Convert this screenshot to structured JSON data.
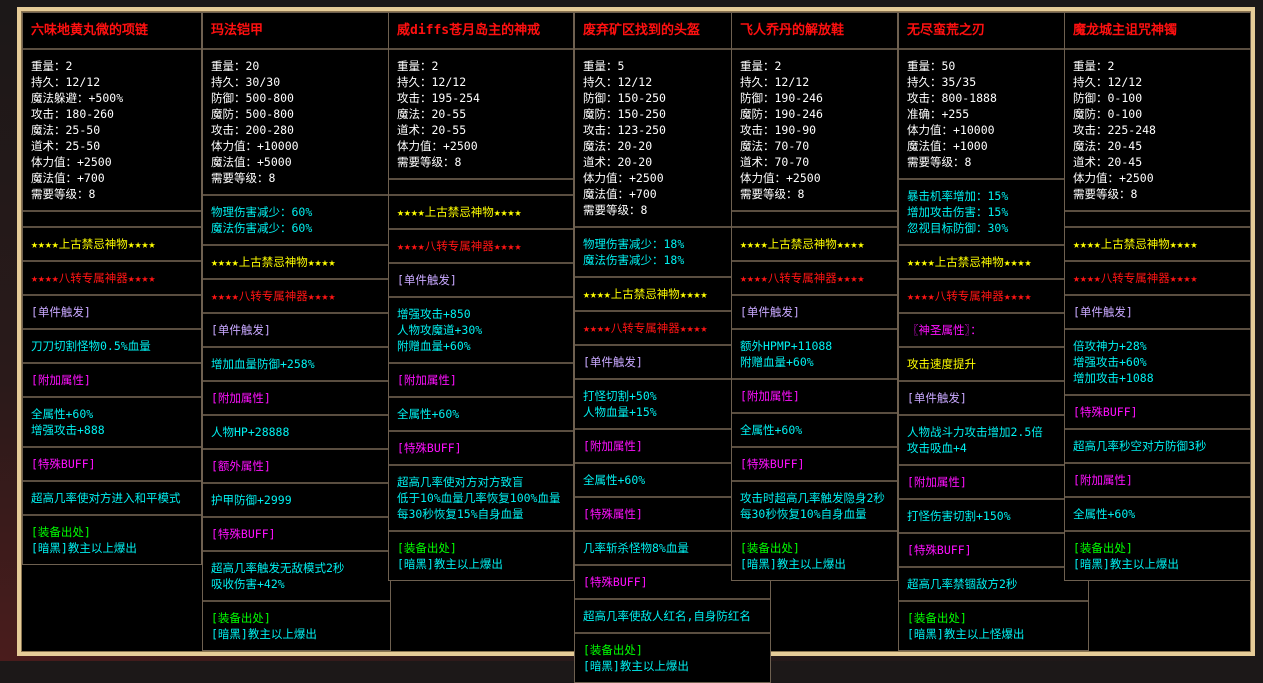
{
  "colors": {
    "title": "#ff1010",
    "stats": "#ffffff",
    "attr": "#00f0f0",
    "yellow": "#ffff00",
    "red": "#ff1414",
    "trigger": "#c8a8ff",
    "header": "#ff10ff",
    "source": "#00ff00",
    "frame": "#e6cc98"
  },
  "cards": [
    {
      "title": "六味地黄丸微的项链",
      "stats": [
        "重量：2",
        "持久：12/12",
        "魔法躲避：+500%",
        "攻击：180-260",
        "魔法：25-50",
        "道术：25-50",
        "体力值：+2500",
        "魔法值：+700",
        "需要等级：8"
      ],
      "sections": [
        {
          "type": "empty",
          "lines": []
        },
        {
          "type": "yellow",
          "lines": [
            "★★★★上古禁忌神物★★★★"
          ]
        },
        {
          "type": "red",
          "lines": [
            "★★★★八转专属神器★★★★"
          ]
        },
        {
          "type": "lav",
          "lines": [
            "[单件触发]"
          ]
        },
        {
          "type": "cyan",
          "lines": [
            "刀刀切割怪物0.5%血量"
          ]
        },
        {
          "type": "mag",
          "lines": [
            "[附加属性]"
          ]
        },
        {
          "type": "cyan",
          "lines": [
            "全属性+60%",
            "增强攻击+888"
          ]
        },
        {
          "type": "mag",
          "lines": [
            "[特殊BUFF]"
          ]
        },
        {
          "type": "cyan",
          "lines": [
            "超高几率使对方进入和平模式"
          ]
        },
        {
          "type": "source",
          "lines": [
            "[装备出处]",
            "[暗黑]教主以上爆出"
          ]
        }
      ]
    },
    {
      "title": "玛法铠甲",
      "stats": [
        "重量：20",
        "持久：30/30",
        "防御：500-800",
        "魔防：500-800",
        "攻击：200-280",
        "体力值：+10000",
        "魔法值：+5000",
        "需要等级：8"
      ],
      "sections": [
        {
          "type": "cyan",
          "lines": [
            "物理伤害减少：60%",
            "魔法伤害减少：60%"
          ]
        },
        {
          "type": "yellow",
          "lines": [
            "★★★★上古禁忌神物★★★★"
          ]
        },
        {
          "type": "red",
          "lines": [
            "★★★★八转专属神器★★★★"
          ]
        },
        {
          "type": "lav",
          "lines": [
            "[单件触发]"
          ]
        },
        {
          "type": "cyan",
          "lines": [
            "增加血量防御+258%"
          ]
        },
        {
          "type": "mag",
          "lines": [
            "[附加属性]"
          ]
        },
        {
          "type": "cyan",
          "lines": [
            "人物HP+28888"
          ]
        },
        {
          "type": "mag",
          "lines": [
            "[额外属性]"
          ]
        },
        {
          "type": "cyan",
          "lines": [
            "护甲防御+2999"
          ]
        },
        {
          "type": "mag",
          "lines": [
            "[特殊BUFF]"
          ]
        },
        {
          "type": "cyan",
          "lines": [
            "超高几率触发无敌模式2秒",
            "吸收伤害+42%"
          ]
        },
        {
          "type": "source",
          "lines": [
            "[装备出处]",
            "[暗黑]教主以上爆出"
          ]
        }
      ]
    },
    {
      "title": "威diffs苍月岛主的神戒",
      "stats": [
        "重量：2",
        "持久：12/12",
        "攻击：195-254",
        "魔法：20-55",
        "道术：20-55",
        "体力值：+2500",
        "需要等级：8"
      ],
      "sections": [
        {
          "type": "empty",
          "lines": []
        },
        {
          "type": "yellow",
          "lines": [
            "★★★★上古禁忌神物★★★★"
          ]
        },
        {
          "type": "red",
          "lines": [
            "★★★★八转专属神器★★★★"
          ]
        },
        {
          "type": "lav",
          "lines": [
            "[单件触发]"
          ]
        },
        {
          "type": "cyan",
          "lines": [
            "增强攻击+850",
            "人物攻魔道+30%",
            "附赠血量+60%"
          ]
        },
        {
          "type": "mag",
          "lines": [
            "[附加属性]"
          ]
        },
        {
          "type": "cyan",
          "lines": [
            "全属性+60%"
          ]
        },
        {
          "type": "mag",
          "lines": [
            "[特殊BUFF]"
          ]
        },
        {
          "type": "cyan",
          "lines": [
            "超高几率使对方对方致盲",
            "低于10%血量几率恢复100%血量",
            "每30秒恢复15%自身血量"
          ]
        },
        {
          "type": "source",
          "lines": [
            "[装备出处]",
            "[暗黑]教主以上爆出"
          ]
        }
      ]
    },
    {
      "title": "废弃矿区找到的头盔",
      "stats": [
        "重量：5",
        "持久：12/12",
        "防御：150-250",
        "魔防：150-250",
        "攻击：123-250",
        "魔法：20-20",
        "道术：20-20",
        "体力值：+2500",
        "魔法值：+700",
        "需要等级：8"
      ],
      "sections": [
        {
          "type": "cyan",
          "lines": [
            "物理伤害减少：18%",
            "魔法伤害减少：18%"
          ]
        },
        {
          "type": "yellow",
          "lines": [
            "★★★★上古禁忌神物★★★★"
          ]
        },
        {
          "type": "red",
          "lines": [
            "★★★★八转专属神器★★★★"
          ]
        },
        {
          "type": "lav",
          "lines": [
            "[单件触发]"
          ]
        },
        {
          "type": "cyan",
          "lines": [
            "打怪切割+50%",
            "人物血量+15%"
          ]
        },
        {
          "type": "mag",
          "lines": [
            "[附加属性]"
          ]
        },
        {
          "type": "cyan",
          "lines": [
            "全属性+60%"
          ]
        },
        {
          "type": "mag",
          "lines": [
            "[特殊属性]"
          ]
        },
        {
          "type": "cyan",
          "lines": [
            "几率斩杀怪物8%血量"
          ]
        },
        {
          "type": "mag",
          "lines": [
            "[特殊BUFF]"
          ]
        },
        {
          "type": "cyan",
          "lines": [
            "超高几率使敌人红名,自身防红名"
          ]
        },
        {
          "type": "source",
          "lines": [
            "[装备出处]",
            "[暗黑]教主以上爆出"
          ]
        }
      ]
    },
    {
      "title": "飞人乔丹的解放鞋",
      "stats": [
        "重量：2",
        "持久：12/12",
        "防御：190-246",
        "魔防：190-246",
        "攻击：190-90",
        "魔法：70-70",
        "道术：70-70",
        "体力值：+2500",
        "需要等级：8"
      ],
      "sections": [
        {
          "type": "empty",
          "lines": []
        },
        {
          "type": "yellow",
          "lines": [
            "★★★★上古禁忌神物★★★★"
          ]
        },
        {
          "type": "red",
          "lines": [
            "★★★★八转专属神器★★★★"
          ]
        },
        {
          "type": "lav",
          "lines": [
            "[单件触发]"
          ]
        },
        {
          "type": "cyan",
          "lines": [
            "额外HPMP+11088",
            "附赠血量+60%"
          ]
        },
        {
          "type": "mag",
          "lines": [
            "[附加属性]"
          ]
        },
        {
          "type": "cyan",
          "lines": [
            "全属性+60%"
          ]
        },
        {
          "type": "mag",
          "lines": [
            "[特殊BUFF]"
          ]
        },
        {
          "type": "cyan",
          "lines": [
            "攻击时超高几率触发隐身2秒",
            "每30秒恢复10%自身血量"
          ]
        },
        {
          "type": "source",
          "lines": [
            "[装备出处]",
            "[暗黑]教主以上爆出"
          ]
        }
      ]
    },
    {
      "title": "无尽蛮荒之刃",
      "stats": [
        "重量：50",
        "持久：35/35",
        "攻击：800-1888",
        "准确：+255",
        "体力值：+10000",
        "魔法值：+1000",
        "需要等级：8"
      ],
      "sections": [
        {
          "type": "cyan",
          "lines": [
            "暴击机率增加：15%",
            "增加攻击伤害：15%",
            "忽视目标防御：30%"
          ]
        },
        {
          "type": "yellow",
          "lines": [
            "★★★★上古禁忌神物★★★★"
          ]
        },
        {
          "type": "red",
          "lines": [
            "★★★★八转专属神器★★★★"
          ]
        },
        {
          "type": "mag",
          "lines": [
            "〖神圣属性〗："
          ]
        },
        {
          "type": "yellow",
          "lines": [
            "攻击速度提升"
          ]
        },
        {
          "type": "lav",
          "lines": [
            "[单件触发]"
          ]
        },
        {
          "type": "cyan",
          "lines": [
            "人物战斗力攻击增加2.5倍",
            "攻击吸血+4"
          ]
        },
        {
          "type": "mag",
          "lines": [
            "[附加属性]"
          ]
        },
        {
          "type": "cyan",
          "lines": [
            "打怪伤害切割+150%"
          ]
        },
        {
          "type": "mag",
          "lines": [
            "[特殊BUFF]"
          ]
        },
        {
          "type": "cyan",
          "lines": [
            "超高几率禁锢敌方2秒"
          ]
        },
        {
          "type": "source",
          "lines": [
            "[装备出处]",
            "[暗黑]教主以上怪爆出"
          ]
        }
      ]
    },
    {
      "title": "魔龙城主诅咒神镯",
      "stats": [
        "重量：2",
        "持久：12/12",
        "防御：0-100",
        "魔防：0-100",
        "攻击：225-248",
        "魔法：20-45",
        "道术：20-45",
        "体力值：+2500",
        "需要等级：8"
      ],
      "sections": [
        {
          "type": "empty",
          "lines": []
        },
        {
          "type": "yellow",
          "lines": [
            "★★★★上古禁忌神物★★★★"
          ]
        },
        {
          "type": "red",
          "lines": [
            "★★★★八转专属神器★★★★"
          ]
        },
        {
          "type": "lav",
          "lines": [
            "[单件触发]"
          ]
        },
        {
          "type": "cyan",
          "lines": [
            "倍攻神力+28%",
            "增强攻击+60%",
            "增加攻击+1088"
          ]
        },
        {
          "type": "mag",
          "lines": [
            "[特殊BUFF]"
          ]
        },
        {
          "type": "cyan",
          "lines": [
            "超高几率秒空对方防御3秒"
          ]
        },
        {
          "type": "mag",
          "lines": [
            "[附加属性]"
          ]
        },
        {
          "type": "cyan",
          "lines": [
            "全属性+60%"
          ]
        },
        {
          "type": "source",
          "lines": [
            "[装备出处]",
            "[暗黑]教主以上爆出"
          ]
        }
      ]
    }
  ]
}
